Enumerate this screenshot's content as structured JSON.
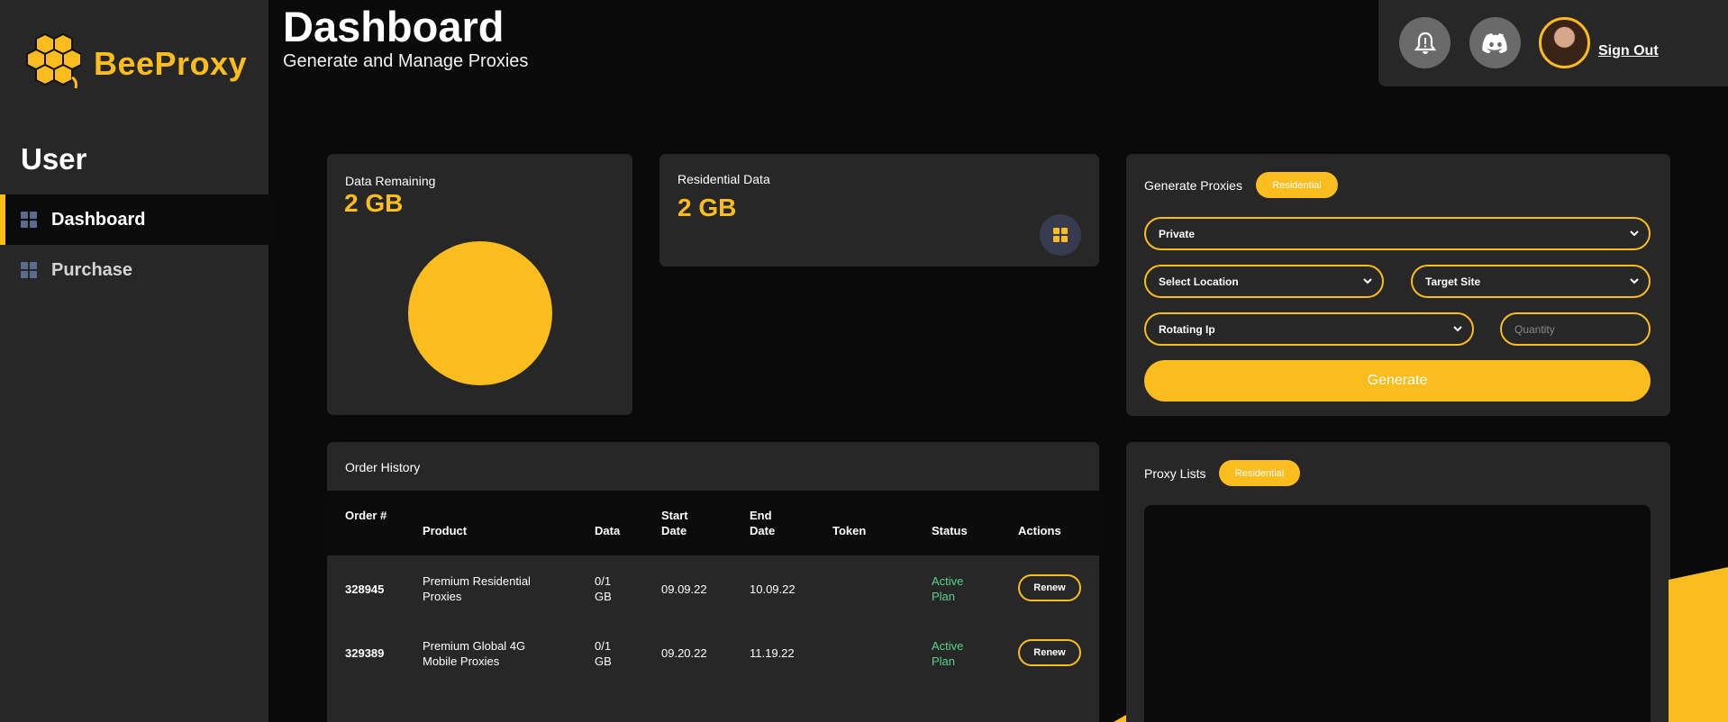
{
  "brand": {
    "name": "BeeProxy",
    "accent": "#fbbd1e"
  },
  "sidebar": {
    "section_title": "User",
    "items": [
      {
        "label": "Dashboard",
        "active": true,
        "icon": "grid-icon"
      },
      {
        "label": "Purchase",
        "active": false,
        "icon": "grid-icon"
      }
    ]
  },
  "header": {
    "title": "Dashboard",
    "subtitle": "Generate and Manage Proxies",
    "sign_out": "Sign Out"
  },
  "data_remaining": {
    "label": "Data Remaining",
    "value": "2 GB"
  },
  "residential_data": {
    "label": "Residential Data",
    "value": "2 GB"
  },
  "generate": {
    "title": "Generate Proxies",
    "type_pill": "Residential",
    "pool_select": "Private",
    "location_select": "Select Location",
    "target_select": "Target Site",
    "rotation_select": "Rotating Ip",
    "quantity_placeholder": "Quantity",
    "button": "Generate"
  },
  "orders": {
    "title": "Order History",
    "columns": [
      "Order #",
      "Product",
      "Data",
      "Start Date",
      "End Date",
      "Token",
      "Status",
      "Actions"
    ],
    "rows": [
      {
        "order": "328945",
        "product": "Premium Residential Proxies",
        "data": "0/1 GB",
        "start": "09.09.22",
        "end": "10.09.22",
        "token": "",
        "status": "Active Plan",
        "action": "Renew"
      },
      {
        "order": "329389",
        "product": "Premium Global 4G Mobile Proxies",
        "data": "0/1 GB",
        "start": "09.20.22",
        "end": "11.19.22",
        "token": "",
        "status": "Active Plan",
        "action": "Renew"
      }
    ]
  },
  "proxy_lists": {
    "title": "Proxy Lists",
    "type_pill": "Residential"
  }
}
